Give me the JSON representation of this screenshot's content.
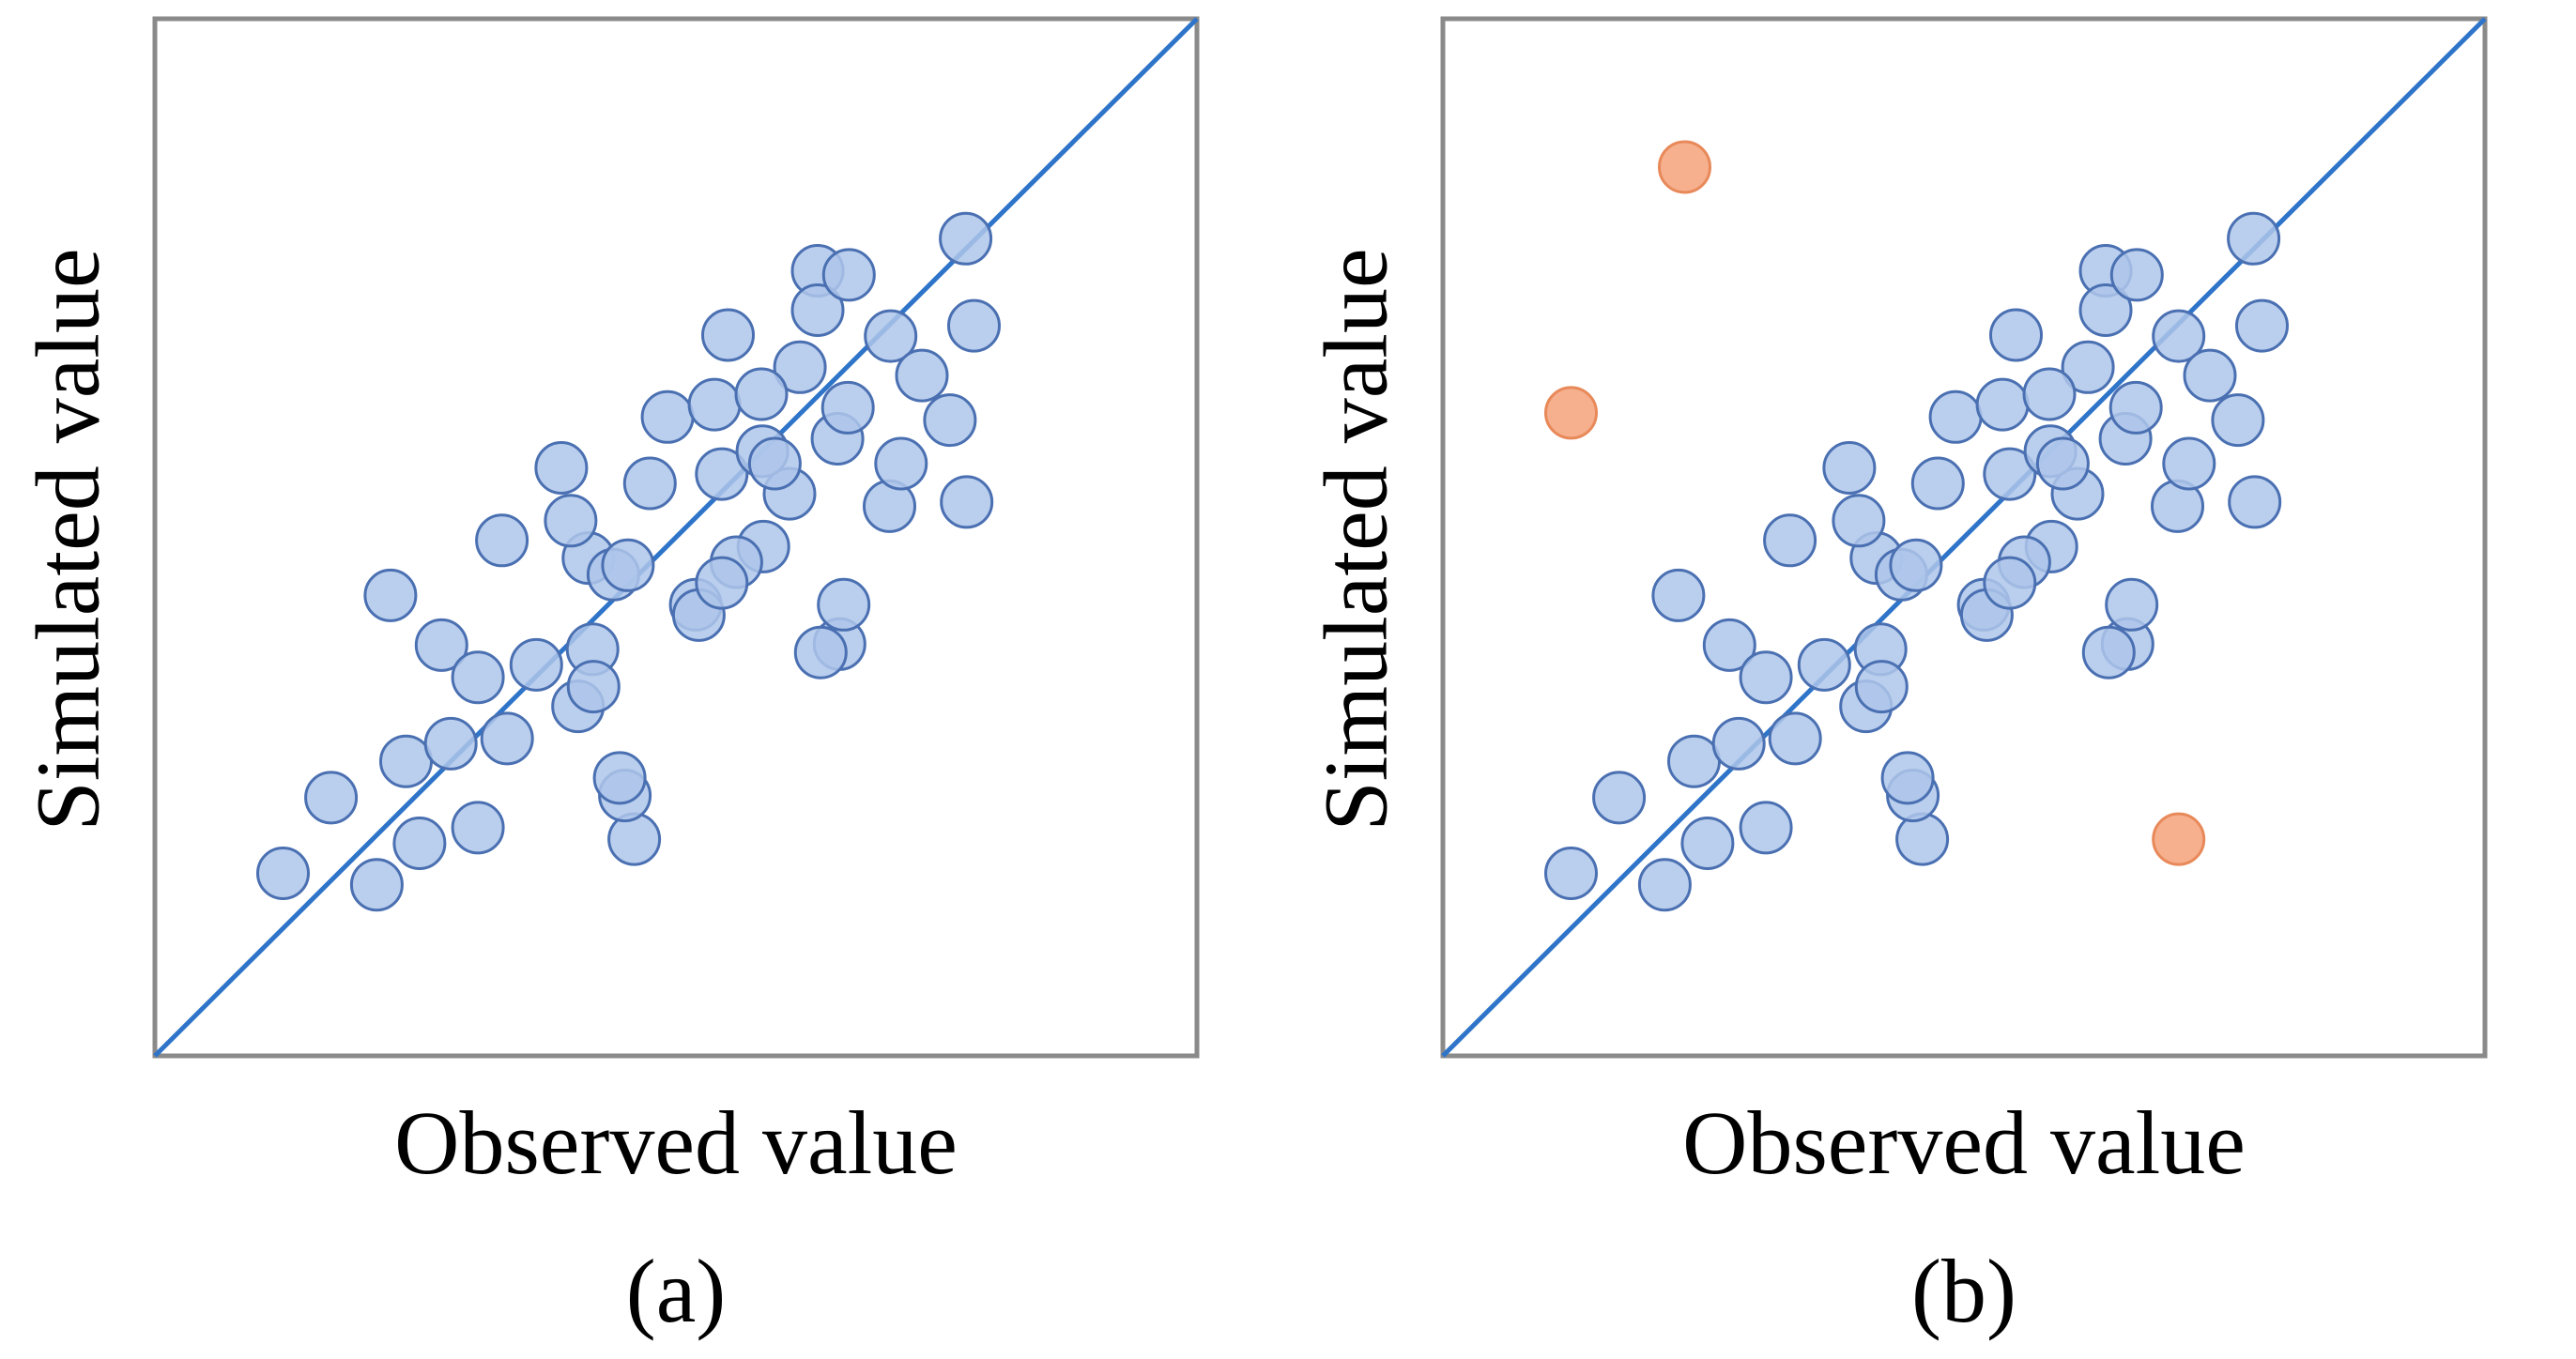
{
  "chart_data": [
    {
      "type": "scatter",
      "panel_label": "(a)",
      "xlabel": "Observed value",
      "ylabel": "Simulated value",
      "xlim": [
        0,
        100
      ],
      "ylim": [
        0,
        100
      ],
      "grid": false,
      "reference_line": {
        "type": "1:1",
        "from": [
          0,
          0
        ],
        "to": [
          100,
          100
        ],
        "color": "#2e74c9"
      },
      "series": [
        {
          "name": "points",
          "color": "#aec6ea",
          "edge_color": "#4a70b2",
          "x": [
            12.3,
            16.9,
            21.3,
            25.4,
            24.1,
            28.4,
            31.0,
            22.6,
            27.5,
            31.0,
            33.3,
            39.0,
            33.8,
            36.6,
            46.0,
            45.1,
            44.6,
            40.6,
            42.0,
            41.6,
            39.9,
            44.0,
            49.2,
            53.7,
            47.5,
            55.0,
            51.9,
            45.4,
            42.1,
            58.4,
            60.9,
            54.4,
            58.3,
            55.8,
            52.2,
            54.4,
            65.5,
            66.5,
            70.5,
            65.7,
            63.9,
            66.1,
            71.6,
            77.9,
            63.6,
            63.6,
            70.6,
            73.6,
            78.6,
            77.8,
            76.3,
            61.9,
            58.2,
            66.6,
            59.5
          ],
          "y": [
            17.6,
            24.9,
            16.5,
            20.5,
            28.4,
            30.1,
            22.0,
            44.4,
            39.6,
            36.5,
            49.7,
            56.7,
            30.6,
            37.7,
            20.9,
            25.1,
            26.8,
            33.7,
            39.2,
            48.0,
            51.6,
            46.4,
            61.6,
            62.8,
            55.2,
            69.5,
            43.5,
            47.3,
            35.6,
            49.1,
            54.2,
            56.1,
            58.3,
            47.6,
            42.5,
            45.6,
            59.5,
            62.5,
            53.0,
            39.7,
            38.9,
            43.5,
            57.1,
            53.4,
            75.7,
            71.9,
            69.4,
            65.6,
            70.4,
            78.8,
            61.3,
            66.4,
            63.8,
            75.3,
            57.1
          ]
        }
      ]
    },
    {
      "type": "scatter",
      "panel_label": "(b)",
      "xlabel": "Observed value",
      "ylabel": "Simulated value",
      "xlim": [
        0,
        100
      ],
      "ylim": [
        0,
        100
      ],
      "grid": false,
      "reference_line": {
        "type": "1:1",
        "from": [
          0,
          0
        ],
        "to": [
          100,
          100
        ],
        "color": "#2e74c9"
      },
      "series": [
        {
          "name": "points",
          "color": "#aec6ea",
          "edge_color": "#4a70b2",
          "x": [
            12.3,
            16.9,
            21.3,
            25.4,
            24.1,
            28.4,
            31.0,
            22.6,
            27.5,
            31.0,
            33.3,
            39.0,
            33.8,
            36.6,
            46.0,
            45.1,
            44.6,
            40.6,
            42.0,
            41.6,
            39.9,
            44.0,
            49.2,
            53.7,
            47.5,
            55.0,
            51.9,
            45.4,
            42.1,
            58.4,
            60.9,
            54.4,
            58.3,
            55.8,
            52.2,
            54.4,
            65.5,
            66.5,
            70.5,
            65.7,
            63.9,
            66.1,
            71.6,
            77.9,
            63.6,
            63.6,
            70.6,
            73.6,
            78.6,
            77.8,
            76.3,
            61.9,
            58.2,
            66.6,
            59.5
          ],
          "y": [
            17.6,
            24.9,
            16.5,
            20.5,
            28.4,
            30.1,
            22.0,
            44.4,
            39.6,
            36.5,
            49.7,
            56.7,
            30.6,
            37.7,
            20.9,
            25.1,
            26.8,
            33.7,
            39.2,
            48.0,
            51.6,
            46.4,
            61.6,
            62.8,
            55.2,
            69.5,
            43.5,
            47.3,
            35.6,
            49.1,
            54.2,
            56.1,
            58.3,
            47.6,
            42.5,
            45.6,
            59.5,
            62.5,
            53.0,
            39.7,
            38.9,
            43.5,
            57.1,
            53.4,
            75.7,
            71.9,
            69.4,
            65.6,
            70.4,
            78.8,
            61.3,
            66.4,
            63.8,
            75.3,
            57.1
          ]
        },
        {
          "name": "outliers",
          "color": "#f4a27a",
          "edge_color": "#e8895a",
          "x": [
            12.3,
            23.2,
            70.6
          ],
          "y": [
            62.0,
            85.7,
            20.9
          ]
        }
      ]
    }
  ]
}
